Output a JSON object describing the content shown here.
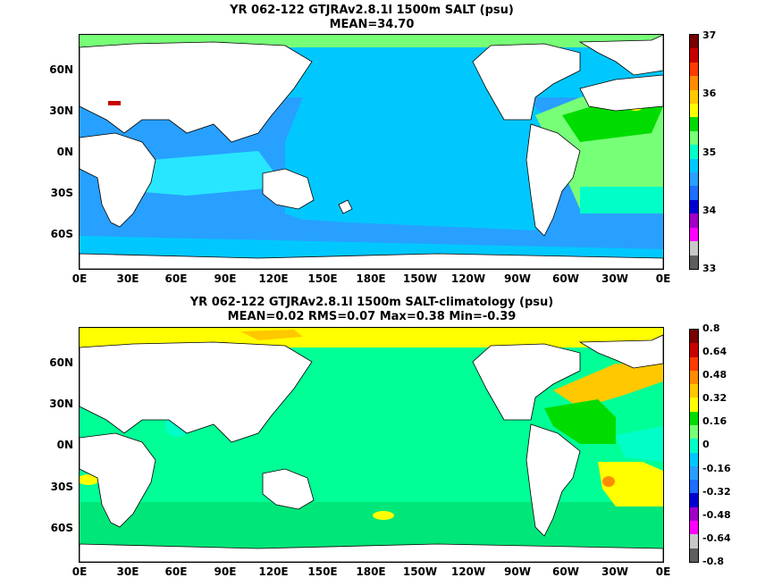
{
  "panels": [
    {
      "title_line1": "YR 062-122 GTJRAv2.8.1l 1500m SALT (psu)",
      "title_line2": "MEAN=34.70",
      "colorbar": {
        "colors": [
          "#5e5e5e",
          "#c8c8c8",
          "#ff00ff",
          "#a000c8",
          "#0000d2",
          "#1e6eff",
          "#28a0ff",
          "#00c8ff",
          "#00ffc8",
          "#78ff78",
          "#00dc00",
          "#ffff00",
          "#ffc800",
          "#ff8c00",
          "#ff3c00",
          "#c80000",
          "#780000"
        ],
        "labels": [
          "37",
          "36",
          "35",
          "34",
          "33"
        ]
      }
    },
    {
      "title_line1": "YR 062-122 GTJRAv2.8.1l 1500m SALT-climatology (psu)",
      "title_line2": "MEAN=0.02   RMS=0.07   Max=0.38   Min=-0.39",
      "colorbar": {
        "colors": [
          "#5e5e5e",
          "#c8c8c8",
          "#ff00ff",
          "#a000c8",
          "#0000d2",
          "#1e6eff",
          "#28a0ff",
          "#00c8ff",
          "#00ffc8",
          "#78ff78",
          "#00dc00",
          "#ffff00",
          "#ffc800",
          "#ff8c00",
          "#ff3c00",
          "#c80000",
          "#780000"
        ],
        "labels": [
          "0.8",
          "0.64",
          "0.48",
          "0.32",
          "0.16",
          "0",
          "-0.16",
          "-0.32",
          "-0.48",
          "-0.64",
          "-0.8"
        ]
      }
    }
  ],
  "lat_labels": [
    "60N",
    "30N",
    "0N",
    "30S",
    "60S"
  ],
  "lon_labels": [
    "0E",
    "30E",
    "60E",
    "90E",
    "120E",
    "150E",
    "180E",
    "150W",
    "120W",
    "90W",
    "60W",
    "30W",
    "0E"
  ],
  "colors": {
    "land": "#ffffff",
    "panel1": {
      "pacific": "#00c8ff",
      "indian": "#28e6ff",
      "south_band": "#28a0ff",
      "atlantic": "#78ff78",
      "north_atl": "#00dc00",
      "arctic": "#78ff78",
      "med": "#c80000"
    },
    "panel2": {
      "ocean": "#00ff96",
      "southern": "#00e678",
      "arctic": "#ffff00",
      "gulf": "#ffc800",
      "atl_warm": "#ffff00",
      "atl_cool": "#00ffc8"
    }
  }
}
